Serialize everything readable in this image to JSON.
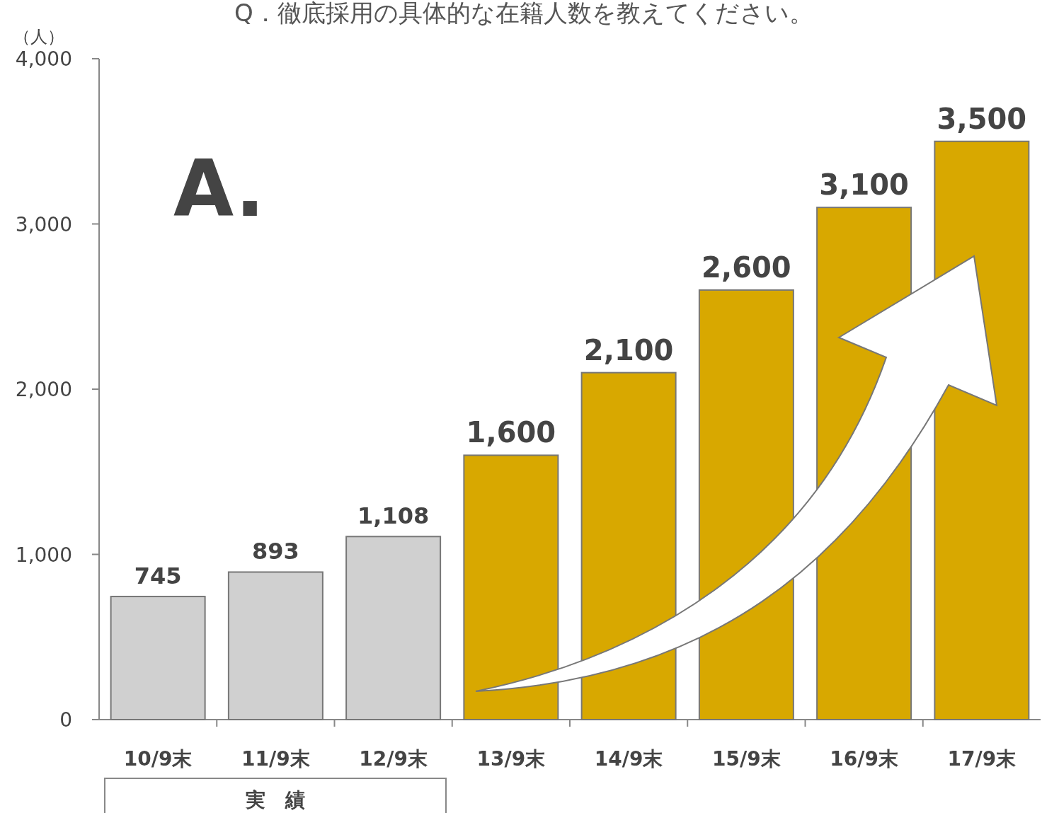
{
  "chart_data": {
    "type": "bar",
    "title": "Q．徹底採用の具体的な在籍人数を教えてください。",
    "ylabel": "（人）",
    "categories": [
      "10/9末",
      "11/9末",
      "12/9末",
      "13/9末",
      "14/9末",
      "15/9末",
      "16/9末",
      "17/9末"
    ],
    "values": [
      745,
      893,
      1108,
      1600,
      2100,
      2600,
      3100,
      3500
    ],
    "value_labels": [
      "745",
      "893",
      "1,108",
      "1,600",
      "2,100",
      "2,600",
      "3,100",
      "3,500"
    ],
    "colors": [
      "#d0d0d0",
      "#d0d0d0",
      "#d0d0d0",
      "#d8a800",
      "#d8a800",
      "#d8a800",
      "#d8a800",
      "#d8a800"
    ],
    "ylim": [
      0,
      4000
    ],
    "yticks": [
      0,
      {
        "value": 1000,
        "label": "1,000"
      },
      {
        "value": 2000,
        "label": "2,000"
      },
      {
        "value": 3000,
        "label": "3,000"
      },
      {
        "value": 4000,
        "label": "4,000"
      }
    ],
    "grid": false,
    "annotations": [
      "A.",
      "実　績"
    ]
  }
}
